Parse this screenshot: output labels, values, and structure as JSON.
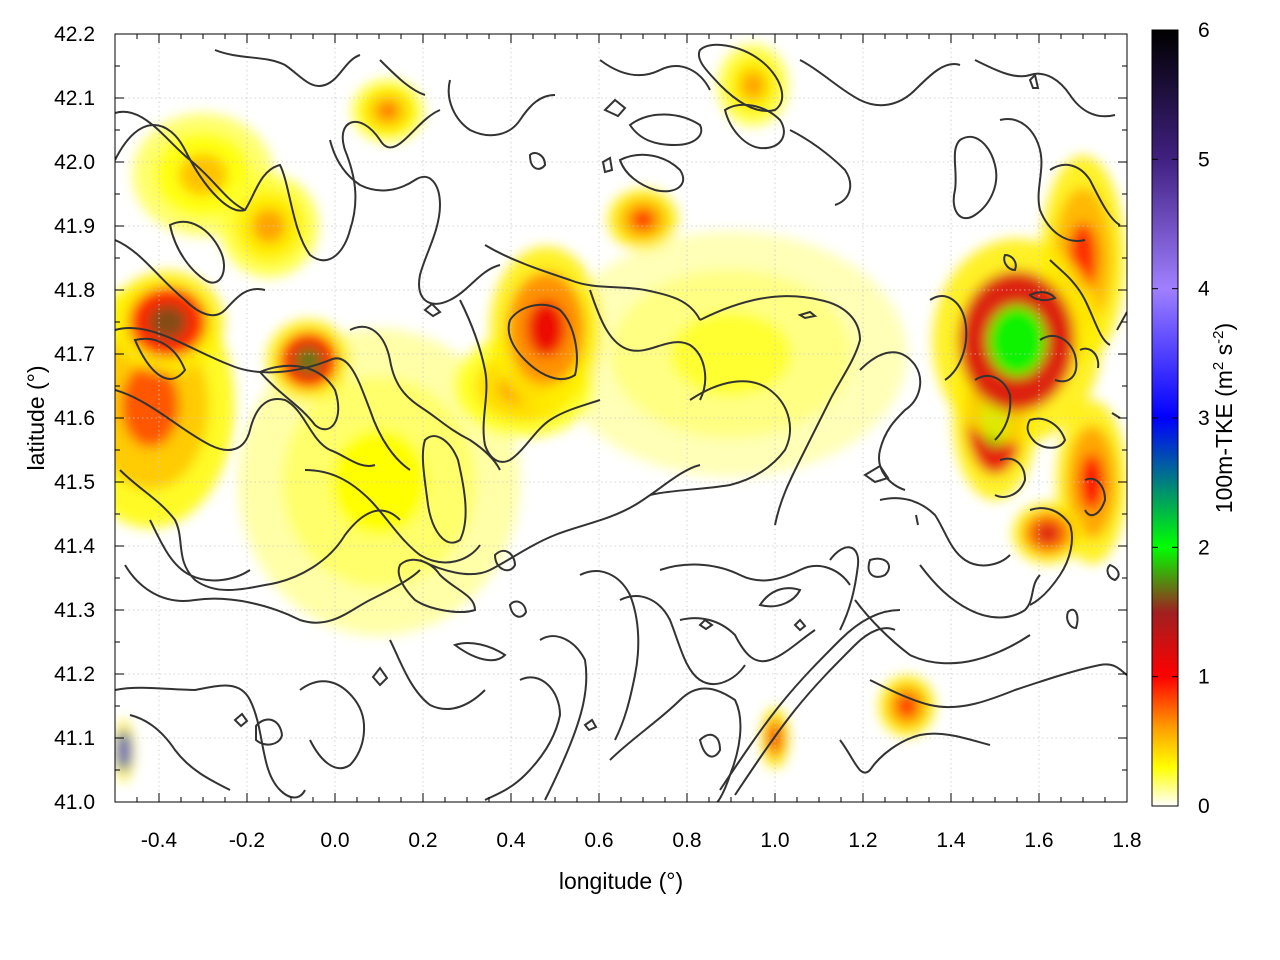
{
  "chart_data": {
    "type": "heatmap",
    "title": "",
    "xlabel": "longitude (°)",
    "ylabel": "latitude (°)",
    "xlim": [
      -0.5,
      1.8
    ],
    "ylim": [
      41.0,
      42.2
    ],
    "x_ticks": [
      -0.4,
      -0.2,
      0.0,
      0.2,
      0.4,
      0.6,
      0.8,
      1.0,
      1.2,
      1.4,
      1.6,
      1.8
    ],
    "x_tick_labels": [
      "-0.4",
      "-0.2",
      "0.0",
      "0.2",
      "0.4",
      "0.6",
      "0.8",
      "1.0",
      "1.2",
      "1.4",
      "1.6",
      "1.8"
    ],
    "y_ticks": [
      41.0,
      41.1,
      41.2,
      41.3,
      41.4,
      41.5,
      41.6,
      41.7,
      41.8,
      41.9,
      42.0,
      42.1,
      42.2
    ],
    "y_tick_labels": [
      "41.0",
      "41.1",
      "41.2",
      "41.3",
      "41.4",
      "41.5",
      "41.6",
      "41.7",
      "41.8",
      "41.9",
      "42.0",
      "42.1",
      "42.2"
    ],
    "grid": true,
    "colorbar": {
      "label": "100m-TKE (m",
      "label_sup1": "2",
      "label_mid": " s",
      "label_sup2": "-2",
      "label_end": ")",
      "range": [
        0,
        6
      ],
      "ticks": [
        0,
        1,
        2,
        3,
        4,
        5,
        6
      ],
      "tick_labels": [
        "0",
        "1",
        "2",
        "3",
        "4",
        "5",
        "6"
      ],
      "palette": [
        {
          "value": 0.0,
          "color": "#ffffff"
        },
        {
          "value": 0.3,
          "color": "#ffff00"
        },
        {
          "value": 0.6,
          "color": "#ffa000"
        },
        {
          "value": 1.0,
          "color": "#ff0000"
        },
        {
          "value": 1.5,
          "color": "#a02020"
        },
        {
          "value": 2.0,
          "color": "#00ff00"
        },
        {
          "value": 3.0,
          "color": "#0000ff"
        },
        {
          "value": 4.0,
          "color": "#a080ff"
        },
        {
          "value": 5.0,
          "color": "#402080"
        },
        {
          "value": 6.0,
          "color": "#000000"
        }
      ]
    },
    "field_hotspots": [
      {
        "lon": -0.38,
        "lat": 41.75,
        "tke": 1.6,
        "lon_extent": 0.08,
        "lat_extent": 0.05
      },
      {
        "lon": -0.42,
        "lat": 41.62,
        "tke": 0.8,
        "lon_extent": 0.12,
        "lat_extent": 0.12
      },
      {
        "lon": -0.06,
        "lat": 41.69,
        "tke": 1.7,
        "lon_extent": 0.06,
        "lat_extent": 0.04
      },
      {
        "lon": -0.15,
        "lat": 41.9,
        "tke": 0.6,
        "lon_extent": 0.07,
        "lat_extent": 0.05
      },
      {
        "lon": -0.3,
        "lat": 41.98,
        "tke": 0.5,
        "lon_extent": 0.1,
        "lat_extent": 0.06
      },
      {
        "lon": 0.48,
        "lat": 41.74,
        "tke": 1.1,
        "lon_extent": 0.08,
        "lat_extent": 0.08
      },
      {
        "lon": 0.43,
        "lat": 41.65,
        "tke": 0.7,
        "lon_extent": 0.1,
        "lat_extent": 0.05
      },
      {
        "lon": 0.12,
        "lat": 42.08,
        "tke": 0.7,
        "lon_extent": 0.05,
        "lat_extent": 0.03
      },
      {
        "lon": 0.7,
        "lat": 41.91,
        "tke": 0.9,
        "lon_extent": 0.05,
        "lat_extent": 0.03
      },
      {
        "lon": 0.95,
        "lat": 42.12,
        "tke": 0.6,
        "lon_extent": 0.05,
        "lat_extent": 0.04
      },
      {
        "lon": 1.0,
        "lat": 41.1,
        "tke": 1.1,
        "lon_extent": 0.02,
        "lat_extent": 0.03
      },
      {
        "lon": 1.3,
        "lat": 41.15,
        "tke": 1.0,
        "lon_extent": 0.04,
        "lat_extent": 0.03
      },
      {
        "lon": 1.55,
        "lat": 41.72,
        "tke": 2.0,
        "lon_extent": 0.12,
        "lat_extent": 0.1
      },
      {
        "lon": 1.5,
        "lat": 41.6,
        "tke": 1.9,
        "lon_extent": 0.06,
        "lat_extent": 0.08
      },
      {
        "lon": 1.7,
        "lat": 41.85,
        "tke": 0.9,
        "lon_extent": 0.06,
        "lat_extent": 0.1
      },
      {
        "lon": 1.72,
        "lat": 41.5,
        "tke": 1.0,
        "lon_extent": 0.05,
        "lat_extent": 0.08
      },
      {
        "lon": 1.62,
        "lat": 41.42,
        "tke": 1.2,
        "lon_extent": 0.05,
        "lat_extent": 0.03
      },
      {
        "lon": -0.48,
        "lat": 41.08,
        "tke": 4.5,
        "lon_extent": 0.015,
        "lat_extent": 0.03
      },
      {
        "lon": 0.1,
        "lat": 41.5,
        "tke": 0.3,
        "lon_extent": 0.2,
        "lat_extent": 0.15
      },
      {
        "lon": 0.9,
        "lat": 41.7,
        "tke": 0.25,
        "lon_extent": 0.25,
        "lat_extent": 0.12
      }
    ]
  }
}
